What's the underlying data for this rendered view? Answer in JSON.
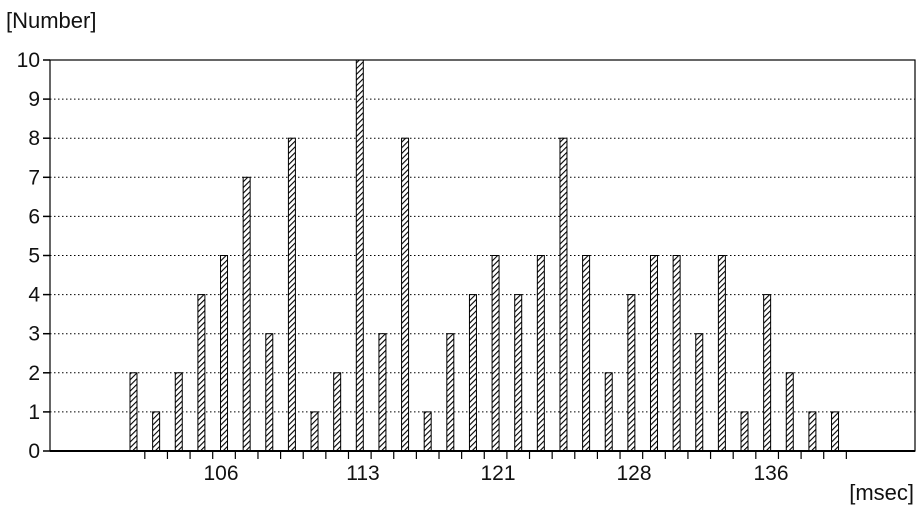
{
  "chart_data": {
    "type": "bar",
    "ylabel": "[Number]",
    "xlabel": "[msec]",
    "ylim": [
      0,
      10
    ],
    "y_ticks": [
      "0",
      "1",
      "2",
      "3",
      "4",
      "5",
      "6",
      "7",
      "8",
      "9",
      "10"
    ],
    "x_tick_labels": [
      "106",
      "113",
      "121",
      "128",
      "136"
    ],
    "x_tick_values": [
      106,
      113,
      121,
      128,
      136
    ],
    "grid": "horizontal-dotted",
    "bar_color": "#000000",
    "bars": [
      {
        "x": 102,
        "value": 2
      },
      {
        "x": 103,
        "value": 1
      },
      {
        "x": 104,
        "value": 2
      },
      {
        "x": 105,
        "value": 4
      },
      {
        "x": 106,
        "value": 5
      },
      {
        "x": 107,
        "value": 7
      },
      {
        "x": 108,
        "value": 3
      },
      {
        "x": 109,
        "value": 8
      },
      {
        "x": 110,
        "value": 1
      },
      {
        "x": 111,
        "value": 2
      },
      {
        "x": 112,
        "value": 10
      },
      {
        "x": 113,
        "value": 3
      },
      {
        "x": 114,
        "value": 8
      },
      {
        "x": 115,
        "value": 1
      },
      {
        "x": 116,
        "value": 3
      },
      {
        "x": 117,
        "value": 4
      },
      {
        "x": 118,
        "value": 5
      },
      {
        "x": 119,
        "value": 4
      },
      {
        "x": 120,
        "value": 5
      },
      {
        "x": 121,
        "value": 8
      },
      {
        "x": 122,
        "value": 5
      },
      {
        "x": 123,
        "value": 2
      },
      {
        "x": 124,
        "value": 4
      },
      {
        "x": 125,
        "value": 5
      },
      {
        "x": 126,
        "value": 5
      },
      {
        "x": 127,
        "value": 3
      },
      {
        "x": 128,
        "value": 5
      },
      {
        "x": 129,
        "value": 1
      },
      {
        "x": 130,
        "value": 4
      },
      {
        "x": 131,
        "value": 2
      },
      {
        "x": 132,
        "value": 1
      },
      {
        "x": 133,
        "value": 1
      }
    ]
  }
}
